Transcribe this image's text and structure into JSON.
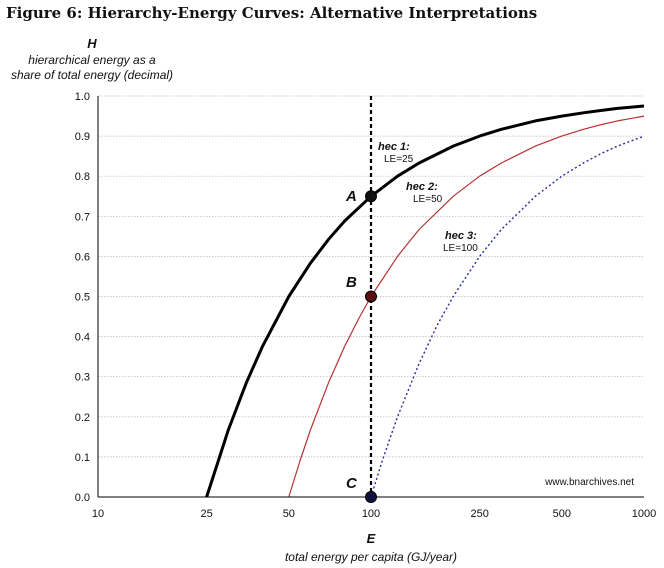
{
  "title": "Figure 6: Hierarchy-Energy Curves: Alternative Interpretations",
  "chart_data": {
    "type": "line",
    "xscale": "log",
    "xlim": [
      10,
      1000
    ],
    "ylim": [
      0,
      1
    ],
    "grid": "horizontal",
    "x_axis": {
      "var": "E",
      "label": "total energy per capita (GJ/year)",
      "ticks": [
        10,
        25,
        50,
        100,
        250,
        500,
        1000
      ],
      "tick_labels": [
        "10",
        "25",
        "50",
        "100",
        "250",
        "500",
        "1000"
      ]
    },
    "y_axis": {
      "var": "H",
      "label_lines": [
        "hierarchical energy as a",
        "share of total energy (decimal)"
      ],
      "ticks": [
        0,
        0.1,
        0.2,
        0.3,
        0.4,
        0.5,
        0.6,
        0.7,
        0.8,
        0.9,
        1.0
      ],
      "tick_labels": [
        "0.0",
        "0.1",
        "0.2",
        "0.3",
        "0.4",
        "0.5",
        "0.6",
        "0.7",
        "0.8",
        "0.9",
        "1.0"
      ]
    },
    "series": [
      {
        "name": "hec 1:",
        "sublabel": "LE=25",
        "le": 25,
        "color": "#000000",
        "style": "solid",
        "width": 3,
        "points": [
          [
            25,
            0
          ],
          [
            30,
            0.167
          ],
          [
            35,
            0.286
          ],
          [
            40,
            0.375
          ],
          [
            50,
            0.5
          ],
          [
            60,
            0.583
          ],
          [
            70,
            0.643
          ],
          [
            80,
            0.688
          ],
          [
            100,
            0.75
          ],
          [
            125,
            0.8
          ],
          [
            150,
            0.833
          ],
          [
            200,
            0.875
          ],
          [
            250,
            0.9
          ],
          [
            300,
            0.917
          ],
          [
            400,
            0.938
          ],
          [
            500,
            0.95
          ],
          [
            600,
            0.958
          ],
          [
            700,
            0.964
          ],
          [
            800,
            0.969
          ],
          [
            1000,
            0.975
          ]
        ]
      },
      {
        "name": "hec 2:",
        "sublabel": "LE=50",
        "le": 50,
        "color": "#b83232",
        "style": "solid",
        "width": 1.2,
        "points": [
          [
            50,
            0
          ],
          [
            55,
            0.091
          ],
          [
            60,
            0.167
          ],
          [
            70,
            0.286
          ],
          [
            80,
            0.375
          ],
          [
            90,
            0.444
          ],
          [
            100,
            0.5
          ],
          [
            125,
            0.6
          ],
          [
            150,
            0.667
          ],
          [
            200,
            0.75
          ],
          [
            250,
            0.8
          ],
          [
            300,
            0.833
          ],
          [
            400,
            0.875
          ],
          [
            500,
            0.9
          ],
          [
            600,
            0.917
          ],
          [
            700,
            0.929
          ],
          [
            800,
            0.938
          ],
          [
            1000,
            0.95
          ]
        ]
      },
      {
        "name": "hec 3:",
        "sublabel": "LE=100",
        "le": 100,
        "color": "#2b2b9c",
        "style": "dotted",
        "width": 1.4,
        "points": [
          [
            100,
            0
          ],
          [
            110,
            0.091
          ],
          [
            125,
            0.2
          ],
          [
            150,
            0.333
          ],
          [
            175,
            0.429
          ],
          [
            200,
            0.5
          ],
          [
            250,
            0.6
          ],
          [
            300,
            0.667
          ],
          [
            400,
            0.75
          ],
          [
            500,
            0.8
          ],
          [
            600,
            0.833
          ],
          [
            700,
            0.857
          ],
          [
            800,
            0.875
          ],
          [
            1000,
            0.9
          ]
        ]
      }
    ],
    "reference_line": {
      "x": 100,
      "style": "dashed",
      "color": "#000000"
    },
    "points": [
      {
        "label": "A",
        "x": 100,
        "y": 0.75
      },
      {
        "label": "B",
        "x": 100,
        "y": 0.5
      },
      {
        "label": "C",
        "x": 100,
        "y": 0.0
      }
    ],
    "credit": "www.bnarchives.net"
  }
}
